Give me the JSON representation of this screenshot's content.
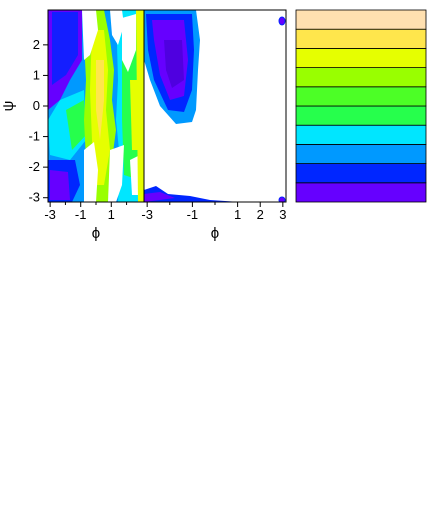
{
  "chart_data": {
    "type": "heatmap",
    "panels": [
      {
        "id": "panel-a",
        "xlabel": "ϕ",
        "ylabel": "ψ",
        "xlim": [
          -3.14,
          3.14
        ],
        "ylim": [
          -3.14,
          3.14
        ],
        "xticks": [
          "-3",
          "-1",
          "1"
        ],
        "xtick_values": [
          -3,
          -1,
          1
        ],
        "yticks": [
          "-3",
          "-2",
          "-1",
          "0",
          "1",
          "2"
        ],
        "ytick_values": [
          -3,
          -2,
          -1,
          0,
          1,
          2
        ]
      },
      {
        "id": "panel-b",
        "xlabel": "ϕ",
        "xlim": [
          -3.14,
          3.14
        ],
        "ylim": [
          -3.14,
          3.14
        ],
        "xticks": [
          "-3",
          "-1",
          "1",
          "2",
          "3"
        ],
        "xtick_values": [
          -3,
          -1,
          1,
          2,
          3
        ]
      }
    ],
    "legend": {
      "placement": "right",
      "levels": 10,
      "colors": [
        "#6600ff",
        "#0026ff",
        "#0099ff",
        "#00e6ff",
        "#26ff4c",
        "#4cff26",
        "#99ff00",
        "#e6ff00",
        "#ffe64c",
        "#ffe0b0"
      ]
    }
  }
}
